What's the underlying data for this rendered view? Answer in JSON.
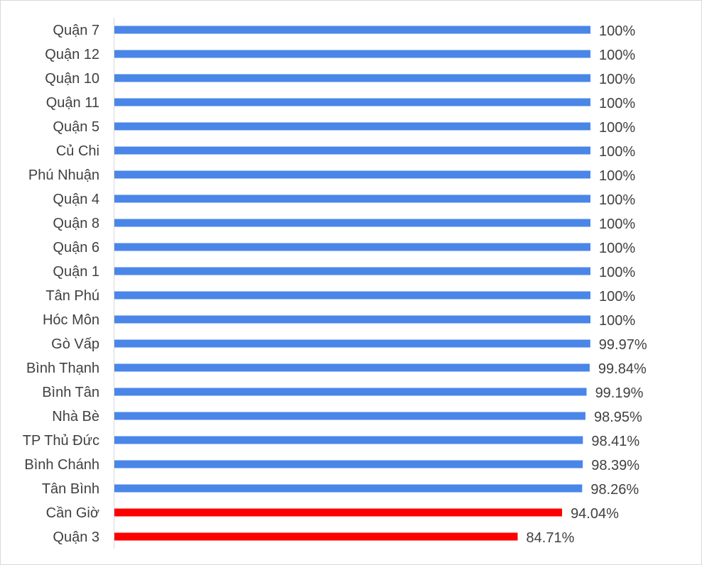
{
  "colors": {
    "default_bar": "#4a86e8",
    "highlight_bar": "#ff0000",
    "text": "#404040",
    "axis": "#d9d9d9"
  },
  "chart_data": {
    "type": "bar",
    "orientation": "horizontal",
    "xlim": [
      0,
      100
    ],
    "grid": false,
    "legend": "none",
    "categories": [
      "Quận 7",
      "Quận 12",
      "Quận 10",
      "Quận 11",
      "Quận 5",
      "Củ Chi",
      "Phú Nhuận",
      "Quận 4",
      "Quận 8",
      "Quận 6",
      "Quận 1",
      "Tân Phú",
      "Hóc Môn",
      "Gò Vấp",
      "Bình Thạnh",
      "Bình Tân",
      "Nhà Bè",
      "TP Thủ Đức",
      "Bình Chánh",
      "Tân Bình",
      "Cần Giờ",
      "Quận 3"
    ],
    "values": [
      100,
      100,
      100,
      100,
      100,
      100,
      100,
      100,
      100,
      100,
      100,
      100,
      100,
      99.97,
      99.84,
      99.19,
      98.95,
      98.41,
      98.39,
      98.26,
      94.04,
      84.71
    ],
    "value_labels": [
      "100%",
      "100%",
      "100%",
      "100%",
      "100%",
      "100%",
      "100%",
      "100%",
      "100%",
      "100%",
      "100%",
      "100%",
      "100%",
      "99.97%",
      "99.84%",
      "99.19%",
      "98.95%",
      "98.41%",
      "98.39%",
      "98.26%",
      "94.04%",
      "84.71%"
    ],
    "highlighted": [
      "Cần Giờ",
      "Quận 3"
    ]
  }
}
